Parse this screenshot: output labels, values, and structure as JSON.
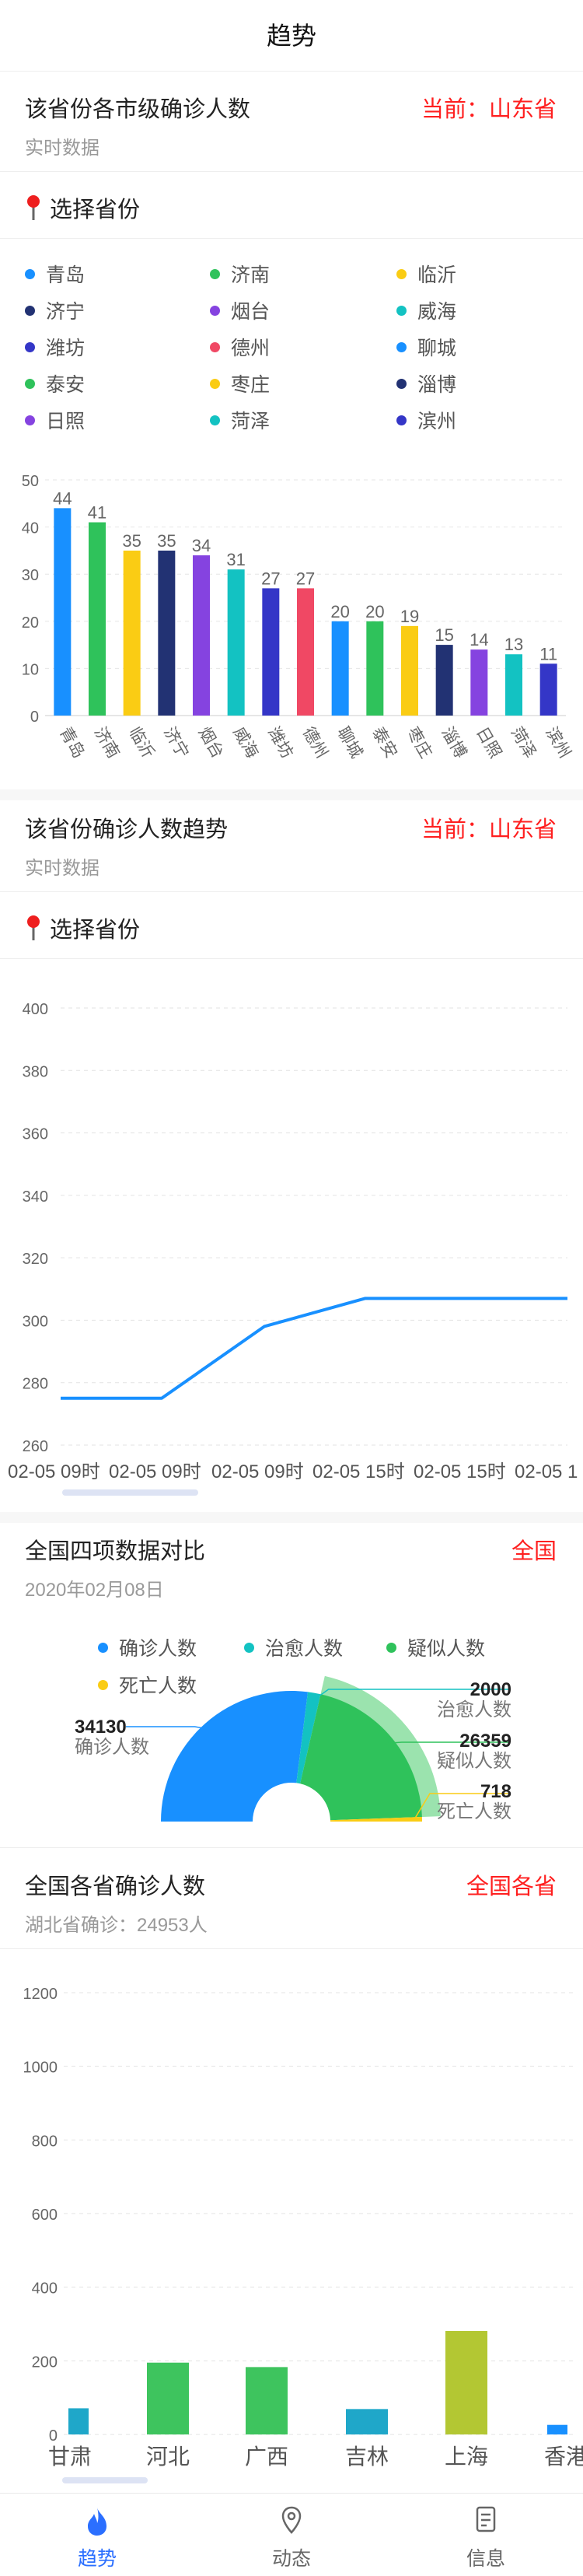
{
  "nav": {
    "title": "趋势"
  },
  "city_section": {
    "title": "该省份各市级确诊人数",
    "current": "当前：山东省",
    "subtitle": "实时数据",
    "select_label": "选择省份",
    "legend": [
      {
        "name": "青岛",
        "color": "#1890ff"
      },
      {
        "name": "济南",
        "color": "#2fc25b"
      },
      {
        "name": "临沂",
        "color": "#facc14"
      },
      {
        "name": "济宁",
        "color": "#223273"
      },
      {
        "name": "烟台",
        "color": "#8543e0"
      },
      {
        "name": "威海",
        "color": "#13c2c2"
      },
      {
        "name": "潍坊",
        "color": "#3436c7"
      },
      {
        "name": "德州",
        "color": "#f04864"
      },
      {
        "name": "聊城",
        "color": "#1890ff"
      },
      {
        "name": "泰安",
        "color": "#2fc25b"
      },
      {
        "name": "枣庄",
        "color": "#facc14"
      },
      {
        "name": "淄博",
        "color": "#223273"
      },
      {
        "name": "日照",
        "color": "#8543e0"
      },
      {
        "name": "菏泽",
        "color": "#13c2c2"
      },
      {
        "name": "滨州",
        "color": "#3436c7"
      }
    ]
  },
  "trend_section": {
    "title": "该省份确诊人数趋势",
    "current": "当前：山东省",
    "subtitle": "实时数据",
    "select_label": "选择省份"
  },
  "compare_section": {
    "title": "全国四项数据对比",
    "right": "全国",
    "date": "2020年02月08日",
    "legend": [
      {
        "name": "确诊人数",
        "color": "#1890ff"
      },
      {
        "name": "治愈人数",
        "color": "#13c2c2"
      },
      {
        "name": "疑似人数",
        "color": "#2fc25b"
      },
      {
        "name": "死亡人数",
        "color": "#facc14"
      }
    ]
  },
  "province_section": {
    "title": "全国各省确诊人数",
    "right": "全国各省",
    "subtitle": "湖北省确诊：24953人"
  },
  "tabbar": {
    "items": [
      {
        "label": "趋势",
        "icon": "flame-icon"
      },
      {
        "label": "动态",
        "icon": "location-pin-icon"
      },
      {
        "label": "信息",
        "icon": "document-icon"
      }
    ]
  },
  "chart_data": [
    {
      "type": "bar",
      "categories": [
        "青岛",
        "济南",
        "临沂",
        "济宁",
        "烟台",
        "威海",
        "潍坊",
        "德州",
        "聊城",
        "泰安",
        "枣庄",
        "淄博",
        "日照",
        "菏泽",
        "滨州"
      ],
      "values": [
        44,
        41,
        35,
        35,
        34,
        31,
        27,
        27,
        20,
        20,
        19,
        15,
        14,
        13,
        11
      ],
      "colors": [
        "#1890ff",
        "#2fc25b",
        "#facc14",
        "#223273",
        "#8543e0",
        "#13c2c2",
        "#3436c7",
        "#f04864",
        "#1890ff",
        "#2fc25b",
        "#facc14",
        "#223273",
        "#8543e0",
        "#13c2c2",
        "#3436c7"
      ],
      "yticks": [
        "0",
        "10",
        "20",
        "30",
        "40",
        "50"
      ],
      "ylim": [
        0,
        50
      ],
      "grid": true
    },
    {
      "type": "line",
      "x": [
        "02-05 09时",
        "02-05 09时",
        "02-05 09时",
        "02-05 15时",
        "02-05 15时",
        "02-05 1"
      ],
      "values": [
        275,
        275,
        298,
        307,
        307,
        307
      ],
      "yticks": [
        "260",
        "280",
        "300",
        "320",
        "340",
        "360",
        "380",
        "400"
      ],
      "ylim": [
        260,
        400
      ],
      "color": "#1890ff",
      "grid": true
    },
    {
      "type": "pie",
      "categories": [
        "确诊人数",
        "治愈人数",
        "疑似人数",
        "死亡人数"
      ],
      "values": [
        34130,
        2000,
        26359,
        718
      ],
      "value_labels": [
        "34130",
        "2000",
        "26359",
        "718"
      ],
      "colors": [
        "#1890ff",
        "#13c2c2",
        "#2fc25b",
        "#facc14"
      ]
    },
    {
      "type": "bar",
      "categories": [
        "甘肃",
        "河北",
        "广西",
        "吉林",
        "上海",
        "香港"
      ],
      "values": [
        71,
        195,
        183,
        69,
        281,
        26
      ],
      "colors": [
        "#1fa7c9",
        "#3ec45e",
        "#3ec45e",
        "#1fa7c9",
        "#b3c733",
        "#1890ff"
      ],
      "yticks": [
        "0",
        "200",
        "400",
        "600",
        "800",
        "1000",
        "1200"
      ],
      "ylim": [
        0,
        1200
      ],
      "grid": true
    }
  ]
}
